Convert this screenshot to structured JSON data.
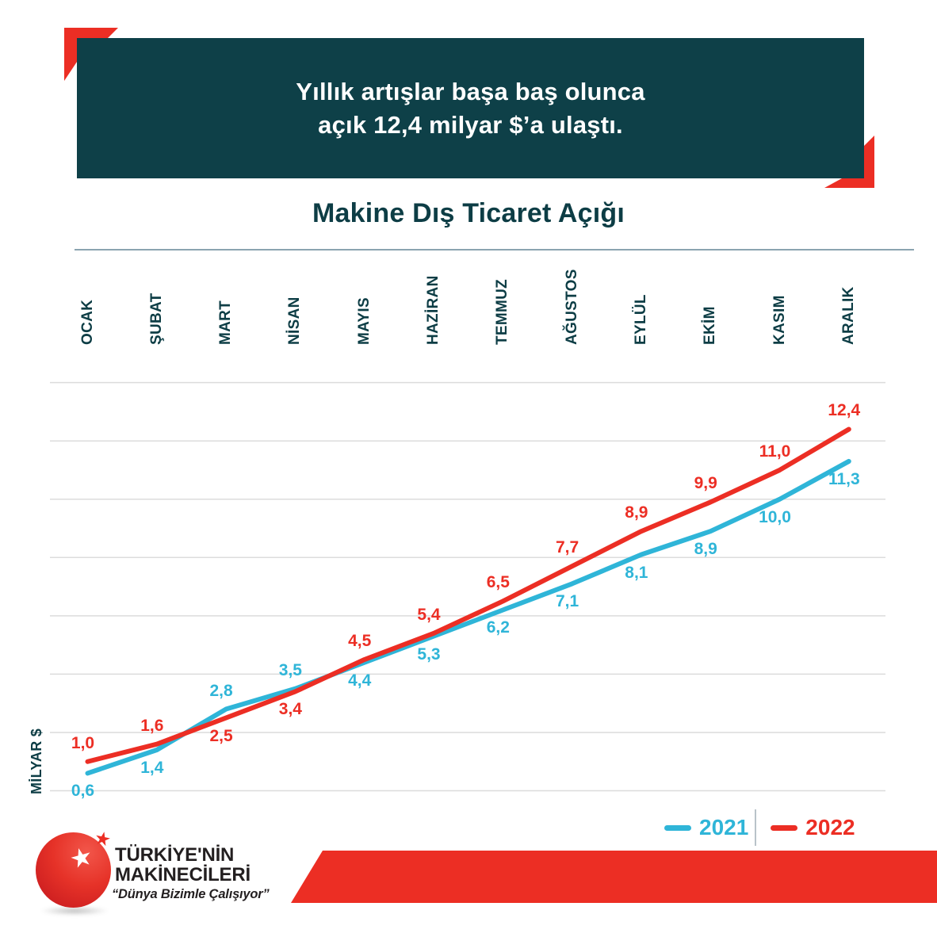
{
  "banner": {
    "line1": "Yıllık artışlar başa baş olunca",
    "line2": "açık 12,4 milyar $’a ulaştı."
  },
  "title": "Makine Dış Ticaret Açığı",
  "y_axis_label": "MİLYAR $",
  "legend": [
    {
      "label": "2021",
      "color": "#2fb5d8"
    },
    {
      "label": "2022",
      "color": "#ec2e24"
    }
  ],
  "chart_data": {
    "type": "line",
    "title": "Makine Dış Ticaret Açığı",
    "ylabel": "MİLYAR $",
    "categories": [
      "OCAK",
      "ŞUBAT",
      "MART",
      "NİSAN",
      "MAYIS",
      "HAZİRAN",
      "TEMMUZ",
      "AĞUSTOS",
      "EYLÜL",
      "EKİM",
      "KASIM",
      "ARALIK"
    ],
    "series": [
      {
        "name": "2021",
        "color": "#2fb5d8",
        "values": [
          0.6,
          1.4,
          2.8,
          3.5,
          4.4,
          5.3,
          6.2,
          7.1,
          8.1,
          8.9,
          10.0,
          11.3
        ],
        "point_labels": [
          "0,6",
          "1,4",
          "2,8",
          "3,5",
          "4,4",
          "5,3",
          "6,2",
          "7,1",
          "8,1",
          "8,9",
          "10,0",
          "11,3"
        ],
        "label_sides": [
          "below",
          "below",
          "above",
          "above",
          "below",
          "below",
          "below",
          "below",
          "below",
          "below",
          "below",
          "below"
        ]
      },
      {
        "name": "2022",
        "color": "#ec2e24",
        "values": [
          1.0,
          1.6,
          2.5,
          3.4,
          4.5,
          5.4,
          6.5,
          7.7,
          8.9,
          9.9,
          11.0,
          12.4
        ],
        "point_labels": [
          "1,0",
          "1,6",
          "2,5",
          "3,4",
          "4,5",
          "5,4",
          "6,5",
          "7,7",
          "8,9",
          "9,9",
          "11,0",
          "12,4"
        ],
        "label_sides": [
          "above",
          "above",
          "below",
          "below",
          "above",
          "above",
          "above",
          "above",
          "above",
          "above",
          "above",
          "above"
        ]
      }
    ],
    "ylim": [
      0,
      14
    ],
    "gridlines": {
      "step": 2,
      "color": "#dcdcdc",
      "orientation": "horizontal"
    },
    "x_axis_position": "top",
    "legend_position": "bottom-right"
  },
  "logo": {
    "name_line1": "TÜRKİYE'NİN",
    "name_line2": "MAKİNECİLERİ",
    "tagline": "“Dünya Bizimle Çalışıyor”"
  },
  "colors": {
    "banner_bg": "#0e4048",
    "accent_red": "#ec2e24",
    "accent_blue": "#2fb5d8",
    "text_teal": "#0d3d45",
    "gridline": "#dcdcdc",
    "separator": "#8ba4b0"
  }
}
